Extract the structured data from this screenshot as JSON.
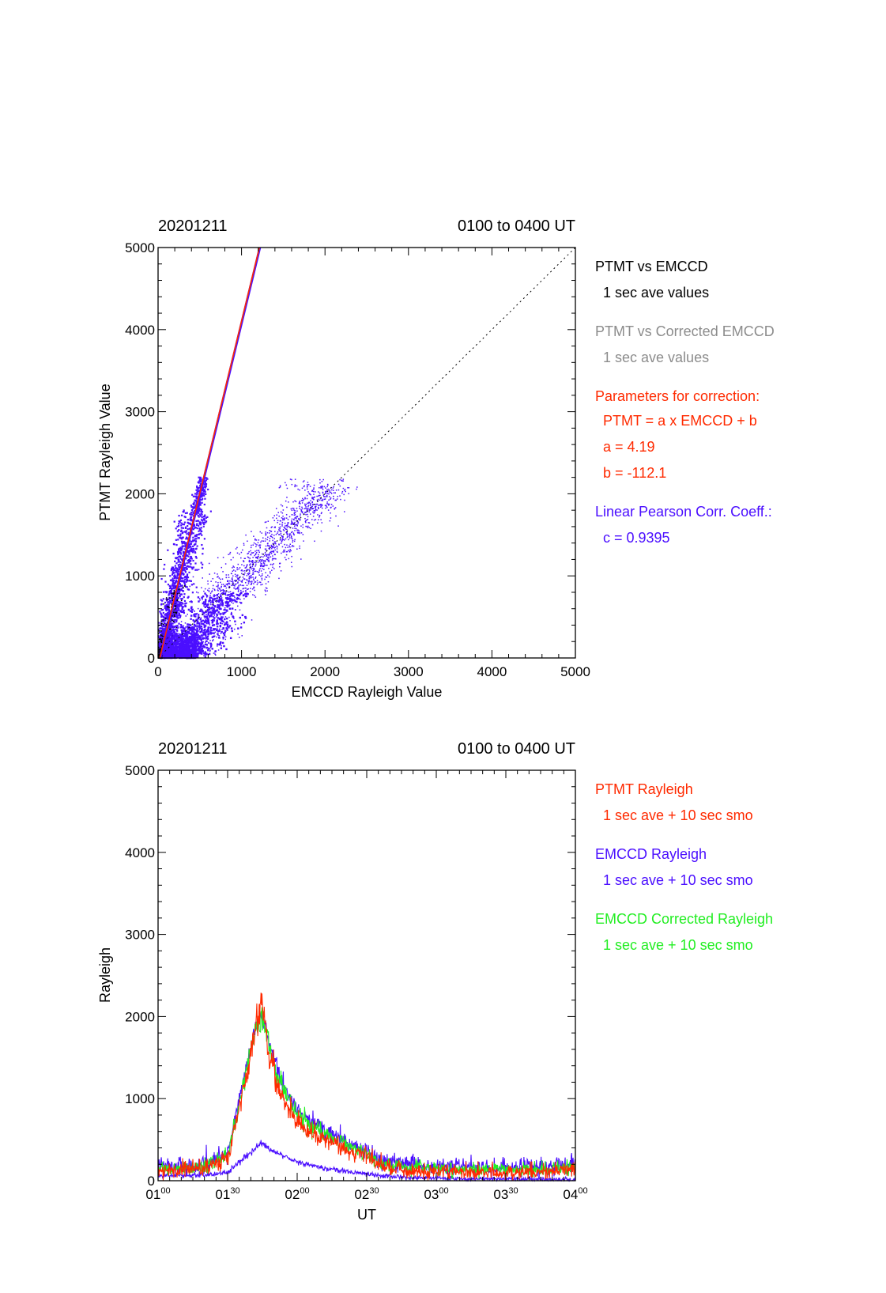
{
  "colors": {
    "black": "#000000",
    "gray": "#8c8c8c",
    "red": "#ff2a00",
    "blue": "#4b0fff",
    "green": "#22ee22"
  },
  "chart_data": [
    {
      "type": "scatter",
      "title_left": "20201211",
      "title_right": "0100 to 0400 UT",
      "xlabel": "EMCCD Rayleigh Value",
      "ylabel": "PTMT Rayleigh Value",
      "xlim": [
        0,
        5000
      ],
      "ylim": [
        0,
        5000
      ],
      "xticks": [
        "0",
        "1000",
        "2000",
        "3000",
        "4000",
        "5000"
      ],
      "yticks": [
        "0",
        "1000",
        "2000",
        "3000",
        "4000",
        "5000"
      ],
      "legend": [
        {
          "text": "PTMT vs EMCCD",
          "color": "black"
        },
        {
          "text": "1 sec ave values",
          "color": "black",
          "indent": true
        },
        {
          "text": "PTMT vs Corrected EMCCD",
          "color": "gray"
        },
        {
          "text": "1 sec ave values",
          "color": "gray",
          "indent": true
        },
        {
          "text": "Parameters for correction:",
          "color": "red"
        },
        {
          "text": "PTMT = a x EMCCD + b",
          "color": "red",
          "indent": true
        },
        {
          "text": "a = 4.19",
          "color": "red",
          "indent": true
        },
        {
          "text": "b = -112.1",
          "color": "red",
          "indent": true
        },
        {
          "text": "Linear Pearson Corr. Coeff.:",
          "color": "blue"
        },
        {
          "text": "c = 0.9395",
          "color": "blue",
          "indent": true
        }
      ],
      "fit": {
        "a": 4.19,
        "b": -112.1
      },
      "identity_line": true,
      "clusters": [
        {
          "x_range": [
            20,
            560
          ],
          "ptmt_range": [
            0,
            2200
          ],
          "scatter": 110
        },
        {
          "x_range": [
            80,
            2250
          ],
          "y_range": [
            0,
            2200
          ],
          "scatter": 170
        }
      ]
    },
    {
      "type": "line",
      "title_left": "20201211",
      "title_right": "0100 to 0400 UT",
      "xlabel": "UT",
      "ylabel": "Rayleigh",
      "ylim": [
        0,
        5000
      ],
      "yticks": [
        "0",
        "1000",
        "2000",
        "3000",
        "4000",
        "5000"
      ],
      "xticks": [
        {
          "h": "01",
          "m": "00"
        },
        {
          "h": "01",
          "m": "30"
        },
        {
          "h": "02",
          "m": "00"
        },
        {
          "h": "02",
          "m": "30"
        },
        {
          "h": "03",
          "m": "00"
        },
        {
          "h": "03",
          "m": "30"
        },
        {
          "h": "04",
          "m": "00"
        }
      ],
      "xlim_hours": [
        1.0,
        4.0
      ],
      "legend": [
        {
          "text": "PTMT Rayleigh",
          "color": "red"
        },
        {
          "text": "1 sec ave + 10 sec smo",
          "color": "red",
          "indent": true
        },
        {
          "text": "EMCCD Rayleigh",
          "color": "blue"
        },
        {
          "text": "1 sec ave + 10 sec smo",
          "color": "blue",
          "indent": true
        },
        {
          "text": "EMCCD Corrected Rayleigh",
          "color": "green"
        },
        {
          "text": "1 sec ave + 10 sec smo",
          "color": "green",
          "indent": true
        }
      ],
      "series": [
        {
          "name": "PTMT Rayleigh",
          "color": "red",
          "x": [
            1.0,
            1.3,
            1.5,
            1.6,
            1.7,
            1.75,
            1.8,
            1.9,
            2.0,
            2.2,
            2.4,
            2.5,
            2.6,
            2.8,
            3.0,
            3.5,
            4.0
          ],
          "y": [
            120,
            140,
            250,
            1000,
            1900,
            2200,
            1500,
            1000,
            700,
            500,
            350,
            300,
            180,
            120,
            120,
            100,
            150
          ]
        },
        {
          "name": "EMCCD Rayleigh",
          "color": "blue",
          "x": [
            1.0,
            1.3,
            1.5,
            1.6,
            1.7,
            1.75,
            1.8,
            1.9,
            2.0,
            2.2,
            2.4,
            2.5,
            2.6,
            2.8,
            3.0,
            3.5,
            4.0
          ],
          "y": [
            60,
            70,
            100,
            250,
            400,
            460,
            380,
            300,
            230,
            150,
            100,
            90,
            60,
            40,
            30,
            20,
            15
          ]
        },
        {
          "name": "EMCCD Corrected Rayleigh",
          "color": "green",
          "x": [
            1.0,
            1.3,
            1.5,
            1.6,
            1.7,
            1.75,
            1.8,
            1.9,
            2.0,
            2.2,
            2.4,
            2.5,
            2.6,
            2.8,
            3.0,
            3.5,
            4.0
          ],
          "y": [
            140,
            160,
            300,
            1050,
            1800,
            1950,
            1600,
            1100,
            800,
            560,
            400,
            330,
            200,
            170,
            150,
            130,
            160
          ]
        }
      ]
    }
  ]
}
